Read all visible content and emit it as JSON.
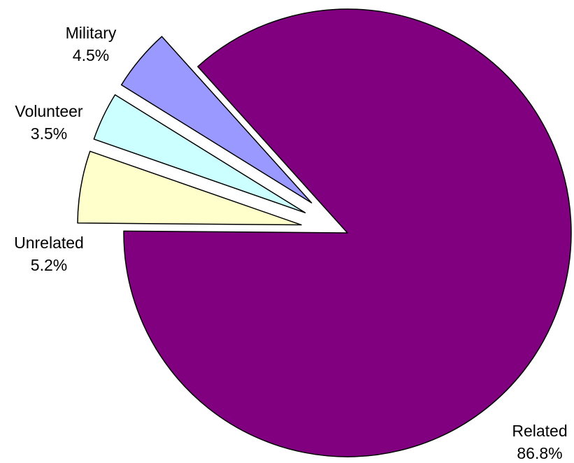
{
  "chart_data": {
    "type": "pie",
    "title": "",
    "slices": [
      {
        "label": "Related",
        "value": 86.8,
        "value_label": "86.8%",
        "color": "#800080",
        "exploded": false
      },
      {
        "label": "Unrelated",
        "value": 5.2,
        "value_label": "5.2%",
        "color": "#FFFFCC",
        "exploded": true
      },
      {
        "label": "Volunteer",
        "value": 3.5,
        "value_label": "3.5%",
        "color": "#CCFFFF",
        "exploded": true
      },
      {
        "label": "Military",
        "value": 4.5,
        "value_label": "4.5%",
        "color": "#9999FF",
        "exploded": true
      }
    ],
    "legend": "none",
    "label_position": "outside"
  }
}
